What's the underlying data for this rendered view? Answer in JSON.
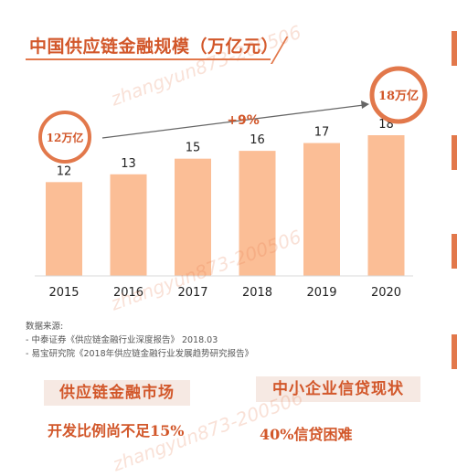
{
  "page": {
    "title": "中国供应链金融规模（万亿元）",
    "source_heading": "数据来源:",
    "sources": [
      "-   中泰证券《供应链金融行业深度报告》 2018.03",
      "-   易宝研究院《2018年供应链金融行业发展趋势研究报告》"
    ],
    "cards": [
      {
        "label": "供应链金融市场",
        "note": "开发比例尚不足15%"
      },
      {
        "label": "中小企业信贷现状",
        "note": "40%信贷困难"
      }
    ],
    "watermark": "zhangyun873-200506"
  },
  "colors": {
    "bar": "#fbbe96",
    "accent": "#d2572a",
    "circle_ring": "#e2784b",
    "arrow": "#666666"
  },
  "chart_data": {
    "type": "bar",
    "categories": [
      "2015",
      "2016",
      "2017",
      "2018",
      "2019",
      "2020"
    ],
    "values": [
      12,
      13,
      15,
      16,
      17,
      18
    ],
    "title": "中国供应链金融规模（万亿元）",
    "xlabel": "",
    "ylabel": "",
    "annotations": {
      "start_bubble": "12万亿",
      "end_bubble": "18万亿",
      "growth_label": "+9%"
    },
    "grid": false
  }
}
